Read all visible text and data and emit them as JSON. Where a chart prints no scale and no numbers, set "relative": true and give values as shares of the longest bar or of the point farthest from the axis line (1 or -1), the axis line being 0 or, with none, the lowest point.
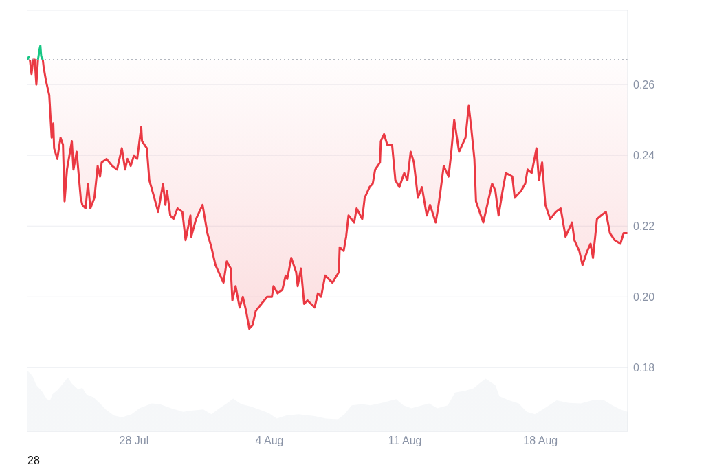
{
  "chart_data": [
    {
      "type": "line",
      "tick_labels": "y",
      "grid": "y",
      "xlim": [
        "--07-22T12:00",
        "--08-22T12:00"
      ],
      "ylim": [
        0.162,
        0.281
      ],
      "yticks": [
        0.18,
        {
          "value": 0.2,
          "label": "0.20"
        },
        0.22,
        0.24,
        0.26
      ],
      "ref_lines": [
        {
          "axis": "y",
          "value": 0.267,
          "line_style": "dotted",
          "color": "#9aa0aa"
        }
      ],
      "series": [
        {
          "color": "#ea3943",
          "x": [
            "--07-22T15:00",
            "--07-22T17:00",
            "--07-22T19:00",
            "--07-22T21:00",
            "--07-22T23:00",
            "--07-23T01:00",
            "--07-23T04:00",
            "--07-23T07:00",
            "--07-23T08:00",
            "--07-23T11:00",
            "--07-23T15:00",
            "--07-23T18:00",
            "--07-23T20:00",
            "--07-23T21:00",
            "--07-24T01:00",
            "--07-24T05:00",
            "--07-24T08:00",
            "--07-24T10:00",
            "--07-24T13:00",
            "--07-24T19:00",
            "--07-24T21:00",
            "--07-25T01:00",
            "--07-25T06:00",
            "--07-25T08:00",
            "--07-25T12:00",
            "--07-25T15:00",
            "--07-25T18:00",
            "--07-25T23:00",
            "--07-26T03:00",
            "--07-26T06:00",
            "--07-26T08:00",
            "--07-26T14:00",
            "--07-26T21:00",
            "--07-27T03:00",
            "--07-27T09:00",
            "--07-27T13:00",
            "--07-27T16:00",
            "--07-27T20:00",
            "--07-28T00:00",
            "--07-28T04:00",
            "--07-28T09:00",
            "--07-28T10:00",
            "--07-28T16:00",
            "--07-28T19:00",
            "--07-29T00:00",
            "--07-29T06:00",
            "--07-29T12:00",
            "--07-29T15:00",
            "--07-29T17:00",
            "--07-29T21:00",
            "--07-30T01:00",
            "--07-30T06:00",
            "--07-30T12:00",
            "--07-30T16:00",
            "--07-30T22:00",
            "--07-30T23:00",
            "--07-31T05:00",
            "--07-31T13:00",
            "--07-31T19:00",
            "--08-01T00:00",
            "--08-01T05:00",
            "--08-01T11:00",
            "--08-01T15:00",
            "--08-01T19:00",
            "--08-02T00:00",
            "--08-02T02:00",
            "--08-02T06:00",
            "--08-02T11:00",
            "--08-02T15:00",
            "--08-02T19:00",
            "--08-02T23:00",
            "--08-03T03:00",
            "--08-03T07:00",
            "--08-03T14:00",
            "--08-03T21:00",
            "--08-04T03:00",
            "--08-04T05:00",
            "--08-04T10:00",
            "--08-04T16:00",
            "--08-04T20:00",
            "--08-04T22:00",
            "--08-05T03:00",
            "--08-05T09:00",
            "--08-05T11:00",
            "--08-05T15:00",
            "--08-05T19:00",
            "--08-05T23:00",
            "--08-06T08:00",
            "--08-06T12:00",
            "--08-06T16:00",
            "--08-06T21:00",
            "--08-07T06:00",
            "--08-07T14:00",
            "--08-07T15:00",
            "--08-07T20:00",
            "--08-07T23:00",
            "--08-08T02:00",
            "--08-08T09:00",
            "--08-08T12:00",
            "--08-08T19:00",
            "--08-08T22:00",
            "--08-09T04:00",
            "--08-09T08:00",
            "--08-09T11:00",
            "--08-09T17:00",
            "--08-09T18:00",
            "--08-09T22:00",
            "--08-10T02:00",
            "--08-10T08:00",
            "--08-10T12:00",
            "--08-10T17:00",
            "--08-10T23:00",
            "--08-11T03:00",
            "--08-11T07:00",
            "--08-11T11:00",
            "--08-11T16:00",
            "--08-11T21:00",
            "--08-12T03:00",
            "--08-12T07:00",
            "--08-12T14:00",
            "--08-12T17:00",
            "--08-12T20:00",
            "--08-13T00:00",
            "--08-13T06:00",
            "--08-13T09:00",
            "--08-13T13:00",
            "--08-13T19:00",
            "--08-13T23:00",
            "--08-14T03:00",
            "--08-14T07:00",
            "--08-14T10:00",
            "--08-14T14:00",
            "--08-14T16:00",
            "--08-15T01:00",
            "--08-15T06:00",
            "--08-15T12:00",
            "--08-15T16:00",
            "--08-15T20:00",
            "--08-16T01:00",
            "--08-16T05:00",
            "--08-16T13:00",
            "--08-16T16:00",
            "--08-17T00:00",
            "--08-17T05:00",
            "--08-17T08:00",
            "--08-17T13:00",
            "--08-17T19:00",
            "--08-17T22:00",
            "--08-18T02:00",
            "--08-18T06:00",
            "--08-18T12:00",
            "--08-18T19:00",
            "--08-19T01:00",
            "--08-19T07:00",
            "--08-19T15:00",
            "--08-19T18:00",
            "--08-20T00:00",
            "--08-20T04:00",
            "--08-20T10:00",
            "--08-20T14:00",
            "--08-20T17:00",
            "--08-20T22:00",
            "--08-21T03:00",
            "--08-21T09:00",
            "--08-21T14:00",
            "--08-21T20:00",
            "--08-22T03:00",
            "--08-22T07:00",
            "--08-22T12:00"
          ],
          "values": [
            0.267,
            0.263,
            0.267,
            0.267,
            0.26,
            0.267,
            null,
            0.267,
            0.265,
            0.261,
            0.257,
            0.245,
            0.249,
            0.242,
            0.239,
            0.245,
            0.243,
            0.227,
            0.236,
            0.244,
            0.236,
            0.241,
            0.228,
            0.226,
            0.225,
            0.232,
            0.225,
            0.228,
            0.237,
            0.234,
            0.238,
            0.239,
            0.237,
            0.236,
            0.242,
            0.236,
            0.239,
            0.237,
            0.24,
            0.239,
            0.248,
            0.244,
            0.242,
            0.233,
            0.229,
            0.224,
            0.232,
            0.226,
            0.23,
            0.223,
            0.222,
            0.225,
            0.224,
            0.216,
            0.223,
            0.217,
            0.222,
            0.226,
            0.218,
            0.214,
            0.209,
            0.206,
            0.204,
            0.21,
            0.208,
            0.199,
            0.203,
            0.197,
            0.2,
            0.196,
            0.191,
            0.192,
            0.196,
            0.198,
            0.2,
            0.2,
            0.203,
            0.201,
            0.202,
            0.206,
            0.205,
            0.211,
            0.207,
            0.203,
            0.208,
            0.198,
            0.199,
            0.197,
            0.201,
            0.2,
            0.206,
            0.204,
            0.207,
            0.214,
            0.213,
            0.217,
            0.223,
            0.221,
            0.225,
            0.222,
            0.228,
            0.231,
            0.232,
            0.236,
            0.238,
            0.244,
            0.246,
            0.243,
            0.243,
            0.233,
            0.231,
            0.235,
            0.233,
            0.241,
            0.238,
            0.228,
            0.231,
            0.223,
            0.226,
            0.221,
            0.225,
            0.23,
            0.237,
            0.234,
            0.24,
            0.25,
            0.241,
            0.243,
            0.245,
            0.254,
            0.248,
            0.239,
            0.227,
            0.221,
            0.226,
            0.232,
            0.23,
            0.223,
            0.23,
            0.235,
            0.234,
            0.228,
            0.23,
            0.232,
            0.236,
            0.235,
            0.242,
            0.233,
            0.238,
            0.226,
            0.222,
            0.224,
            0.225,
            0.217,
            0.221,
            0.216,
            0.213,
            0.209,
            0.213,
            0.215,
            0.211,
            0.222,
            0.223,
            0.224,
            0.218,
            0.216,
            0.215,
            0.218,
            0.218
          ],
          "lower": [
            0.267,
            0.263,
            0.267,
            0.267,
            0.26,
            0.267,
            null,
            0.267,
            0.265,
            0.261,
            0.257,
            0.245,
            0.249,
            0.242,
            0.239,
            0.245,
            0.243,
            0.227,
            0.236,
            0.244,
            0.236,
            0.241,
            0.228,
            0.226,
            0.225,
            0.232,
            0.225,
            0.228,
            0.237,
            0.234,
            0.238,
            0.239,
            0.237,
            0.236,
            0.242,
            0.236,
            0.239,
            0.237,
            0.24,
            0.239,
            0.248,
            0.244,
            0.242,
            0.233,
            0.229,
            0.224,
            0.232,
            0.226,
            0.23,
            0.223,
            0.222,
            0.225,
            0.224,
            0.216,
            0.223,
            0.217,
            0.222,
            0.226,
            0.218,
            0.214,
            0.209,
            0.206,
            0.204,
            0.21,
            0.208,
            0.199,
            0.203,
            0.197,
            0.2,
            0.196,
            0.191,
            0.192,
            0.196,
            0.198,
            0.2,
            0.2,
            0.203,
            0.201,
            0.202,
            0.206,
            0.205,
            0.211,
            0.207,
            0.203,
            0.208,
            0.198,
            0.199,
            0.197,
            0.201,
            0.2,
            0.206,
            0.204,
            0.207,
            0.214,
            0.213,
            0.217,
            0.223,
            0.221,
            0.225,
            0.222,
            0.228,
            0.231,
            0.232,
            0.236,
            0.238,
            0.244,
            0.246,
            0.243,
            0.243,
            0.233,
            0.231,
            0.235,
            0.233,
            0.241,
            0.238,
            0.228,
            0.231,
            0.223,
            0.226,
            0.221,
            0.225,
            0.23,
            0.237,
            0.234,
            0.24,
            0.25,
            0.241,
            0.243,
            0.245,
            0.254,
            0.248,
            0.239,
            0.227,
            0.221,
            0.226,
            0.232,
            0.23,
            0.223,
            0.23,
            0.235,
            0.234,
            0.228,
            0.23,
            0.232,
            0.236,
            0.235,
            0.242,
            0.233,
            0.238,
            0.226,
            0.222,
            0.224,
            0.225,
            0.217,
            0.221,
            0.216,
            0.213,
            0.209,
            0.213,
            0.215,
            0.211,
            0.222,
            0.223,
            0.224,
            0.218,
            0.216,
            0.215,
            0.218,
            0.218
          ],
          "upper": [
            0.267,
            0.267,
            0.267,
            0.267,
            0.267,
            0.267,
            null,
            0.267,
            0.267,
            0.267,
            0.267,
            0.267,
            0.267,
            0.267,
            0.267,
            0.267,
            0.267,
            0.267,
            0.267,
            0.267,
            0.267,
            0.267,
            0.267,
            0.267,
            0.267,
            0.267,
            0.267,
            0.267,
            0.267,
            0.267,
            0.267,
            0.267,
            0.267,
            0.267,
            0.267,
            0.267,
            0.267,
            0.267,
            0.267,
            0.267,
            0.267,
            0.267,
            0.267,
            0.267,
            0.267,
            0.267,
            0.267,
            0.267,
            0.267,
            0.267,
            0.267,
            0.267,
            0.267,
            0.267,
            0.267,
            0.267,
            0.267,
            0.267,
            0.267,
            0.267,
            0.267,
            0.267,
            0.267,
            0.267,
            0.267,
            0.267,
            0.267,
            0.267,
            0.267,
            0.267,
            0.267,
            0.267,
            0.267,
            0.267,
            0.267,
            0.267,
            0.267,
            0.267,
            0.267,
            0.267,
            0.267,
            0.267,
            0.267,
            0.267,
            0.267,
            0.267,
            0.267,
            0.267,
            0.267,
            0.267,
            0.267,
            0.267,
            0.267,
            0.267,
            0.267,
            0.267,
            0.267,
            0.267,
            0.267,
            0.267,
            0.267,
            0.267,
            0.267,
            0.267,
            0.267,
            0.267,
            0.267,
            0.267,
            0.267,
            0.267,
            0.267,
            0.267,
            0.267,
            0.267,
            0.267,
            0.267,
            0.267,
            0.267,
            0.267,
            0.267,
            0.267,
            0.267,
            0.267,
            0.267,
            0.267,
            0.267,
            0.267,
            0.267,
            0.267,
            0.267,
            0.267,
            0.267,
            0.267,
            0.267,
            0.267,
            0.267,
            0.267,
            0.267,
            0.267,
            0.267,
            0.267,
            0.267,
            0.267,
            0.267,
            0.267,
            0.267,
            0.267,
            0.267,
            0.267,
            0.267,
            0.267,
            0.267,
            0.267,
            0.267,
            0.267,
            0.267,
            0.267,
            0.267,
            0.267,
            0.267,
            0.267,
            0.267,
            0.267,
            0.267,
            0.267,
            0.267,
            0.267,
            0.267,
            0.267
          ]
        },
        {
          "color": "#16c784",
          "x": [
            "--07-22T12:00",
            "--07-22T14:00",
            "--07-22T18:00",
            "--07-23T01:00",
            "--07-23T03:00",
            "--07-23T04:00",
            "--07-23T05:00",
            "--07-23T07:00"
          ],
          "values": [
            0.267,
            0.268,
            null,
            0.267,
            0.27,
            0.271,
            0.268,
            0.267
          ]
        }
      ]
    },
    {
      "type": "area",
      "relative": true,
      "tick_labels": "x",
      "xlim": [
        "--07-22T12:00",
        "--08-22T12:00"
      ],
      "xticks": [
        {
          "value": "--07-28",
          "label": "28 Jul"
        },
        {
          "value": "--08-04",
          "label": "4 Aug"
        },
        {
          "value": "--08-11",
          "label": "11 Aug"
        },
        {
          "value": "--08-18",
          "label": "18 Aug"
        }
      ],
      "annotations": [
        "28"
      ],
      "series": [
        {
          "color": "#eff2f5",
          "x": [
            "--07-22T12:00",
            "--07-22T18:00",
            "--07-22T23:00",
            "--07-23T06:00",
            "--07-23T12:00",
            "--07-23T16:00",
            "--07-23T19:00",
            "--07-24T02:00",
            "--07-24T10:00",
            "--07-24T14:00",
            "--07-24T19:00",
            "--07-25T03:00",
            "--07-25T08:00",
            "--07-25T13:00",
            "--07-25T22:00",
            "--07-26T06:00",
            "--07-26T13:00",
            "--07-26T23:00",
            "--07-27T09:00",
            "--07-27T21:00",
            "--07-28T07:00",
            "--07-28T22:00",
            "--07-29T08:00",
            "--07-29T22:00",
            "--07-30T13:00",
            "--07-30T23:00",
            "--07-31T14:00",
            "--08-01T00:00",
            "--08-01T10:00",
            "--08-01T19:00",
            "--08-02T03:00",
            "--08-02T13:00",
            "--08-03T01:00",
            "--08-03T11:00",
            "--08-03T23:00",
            "--08-04T09:00",
            "--08-04T21:00",
            "--08-05T12:00",
            "--08-06T08:00",
            "--08-06T22:00",
            "--08-07T13:00",
            "--08-07T21:00",
            "--08-08T06:00",
            "--08-08T19:00",
            "--08-09T05:00",
            "--08-09T19:00",
            "--08-10T13:00",
            "--08-10T22:00",
            "--08-11T08:00",
            "--08-11T21:00",
            "--08-12T06:00",
            "--08-12T16:00",
            "--08-13T05:00",
            "--08-13T14:00",
            "--08-14T03:00",
            "--08-14T13:00",
            "--08-14T20:00",
            "--08-15T04:00",
            "--08-15T16:00",
            "--08-15T21:00",
            "--08-16T09:00",
            "--08-16T21:00",
            "--08-17T07:00",
            "--08-17T17:00",
            "--08-18T05:00",
            "--08-18T20:00",
            "--08-19T11:00",
            "--08-20T02:00",
            "--08-20T16:00",
            "--08-21T07:00",
            "--08-21T17:00",
            "--08-22T03:00",
            "--08-22T12:00"
          ],
          "values": [
            1.0,
            0.92,
            0.76,
            0.66,
            0.53,
            0.51,
            0.61,
            0.69,
            0.82,
            0.89,
            0.79,
            0.69,
            0.72,
            0.61,
            0.56,
            0.46,
            0.36,
            0.26,
            0.23,
            0.28,
            0.38,
            0.46,
            0.45,
            0.38,
            0.32,
            0.34,
            0.36,
            0.28,
            0.38,
            0.46,
            0.54,
            0.45,
            0.41,
            0.36,
            0.3,
            0.21,
            0.26,
            0.28,
            0.25,
            0.21,
            0.2,
            0.28,
            0.43,
            0.45,
            0.43,
            0.47,
            0.53,
            0.43,
            0.38,
            0.43,
            0.46,
            0.38,
            0.43,
            0.64,
            0.67,
            0.71,
            0.79,
            0.87,
            0.76,
            0.58,
            0.51,
            0.46,
            0.32,
            0.28,
            0.38,
            0.51,
            0.47,
            0.46,
            0.51,
            0.51,
            0.43,
            0.36,
            0.32
          ]
        }
      ]
    }
  ]
}
